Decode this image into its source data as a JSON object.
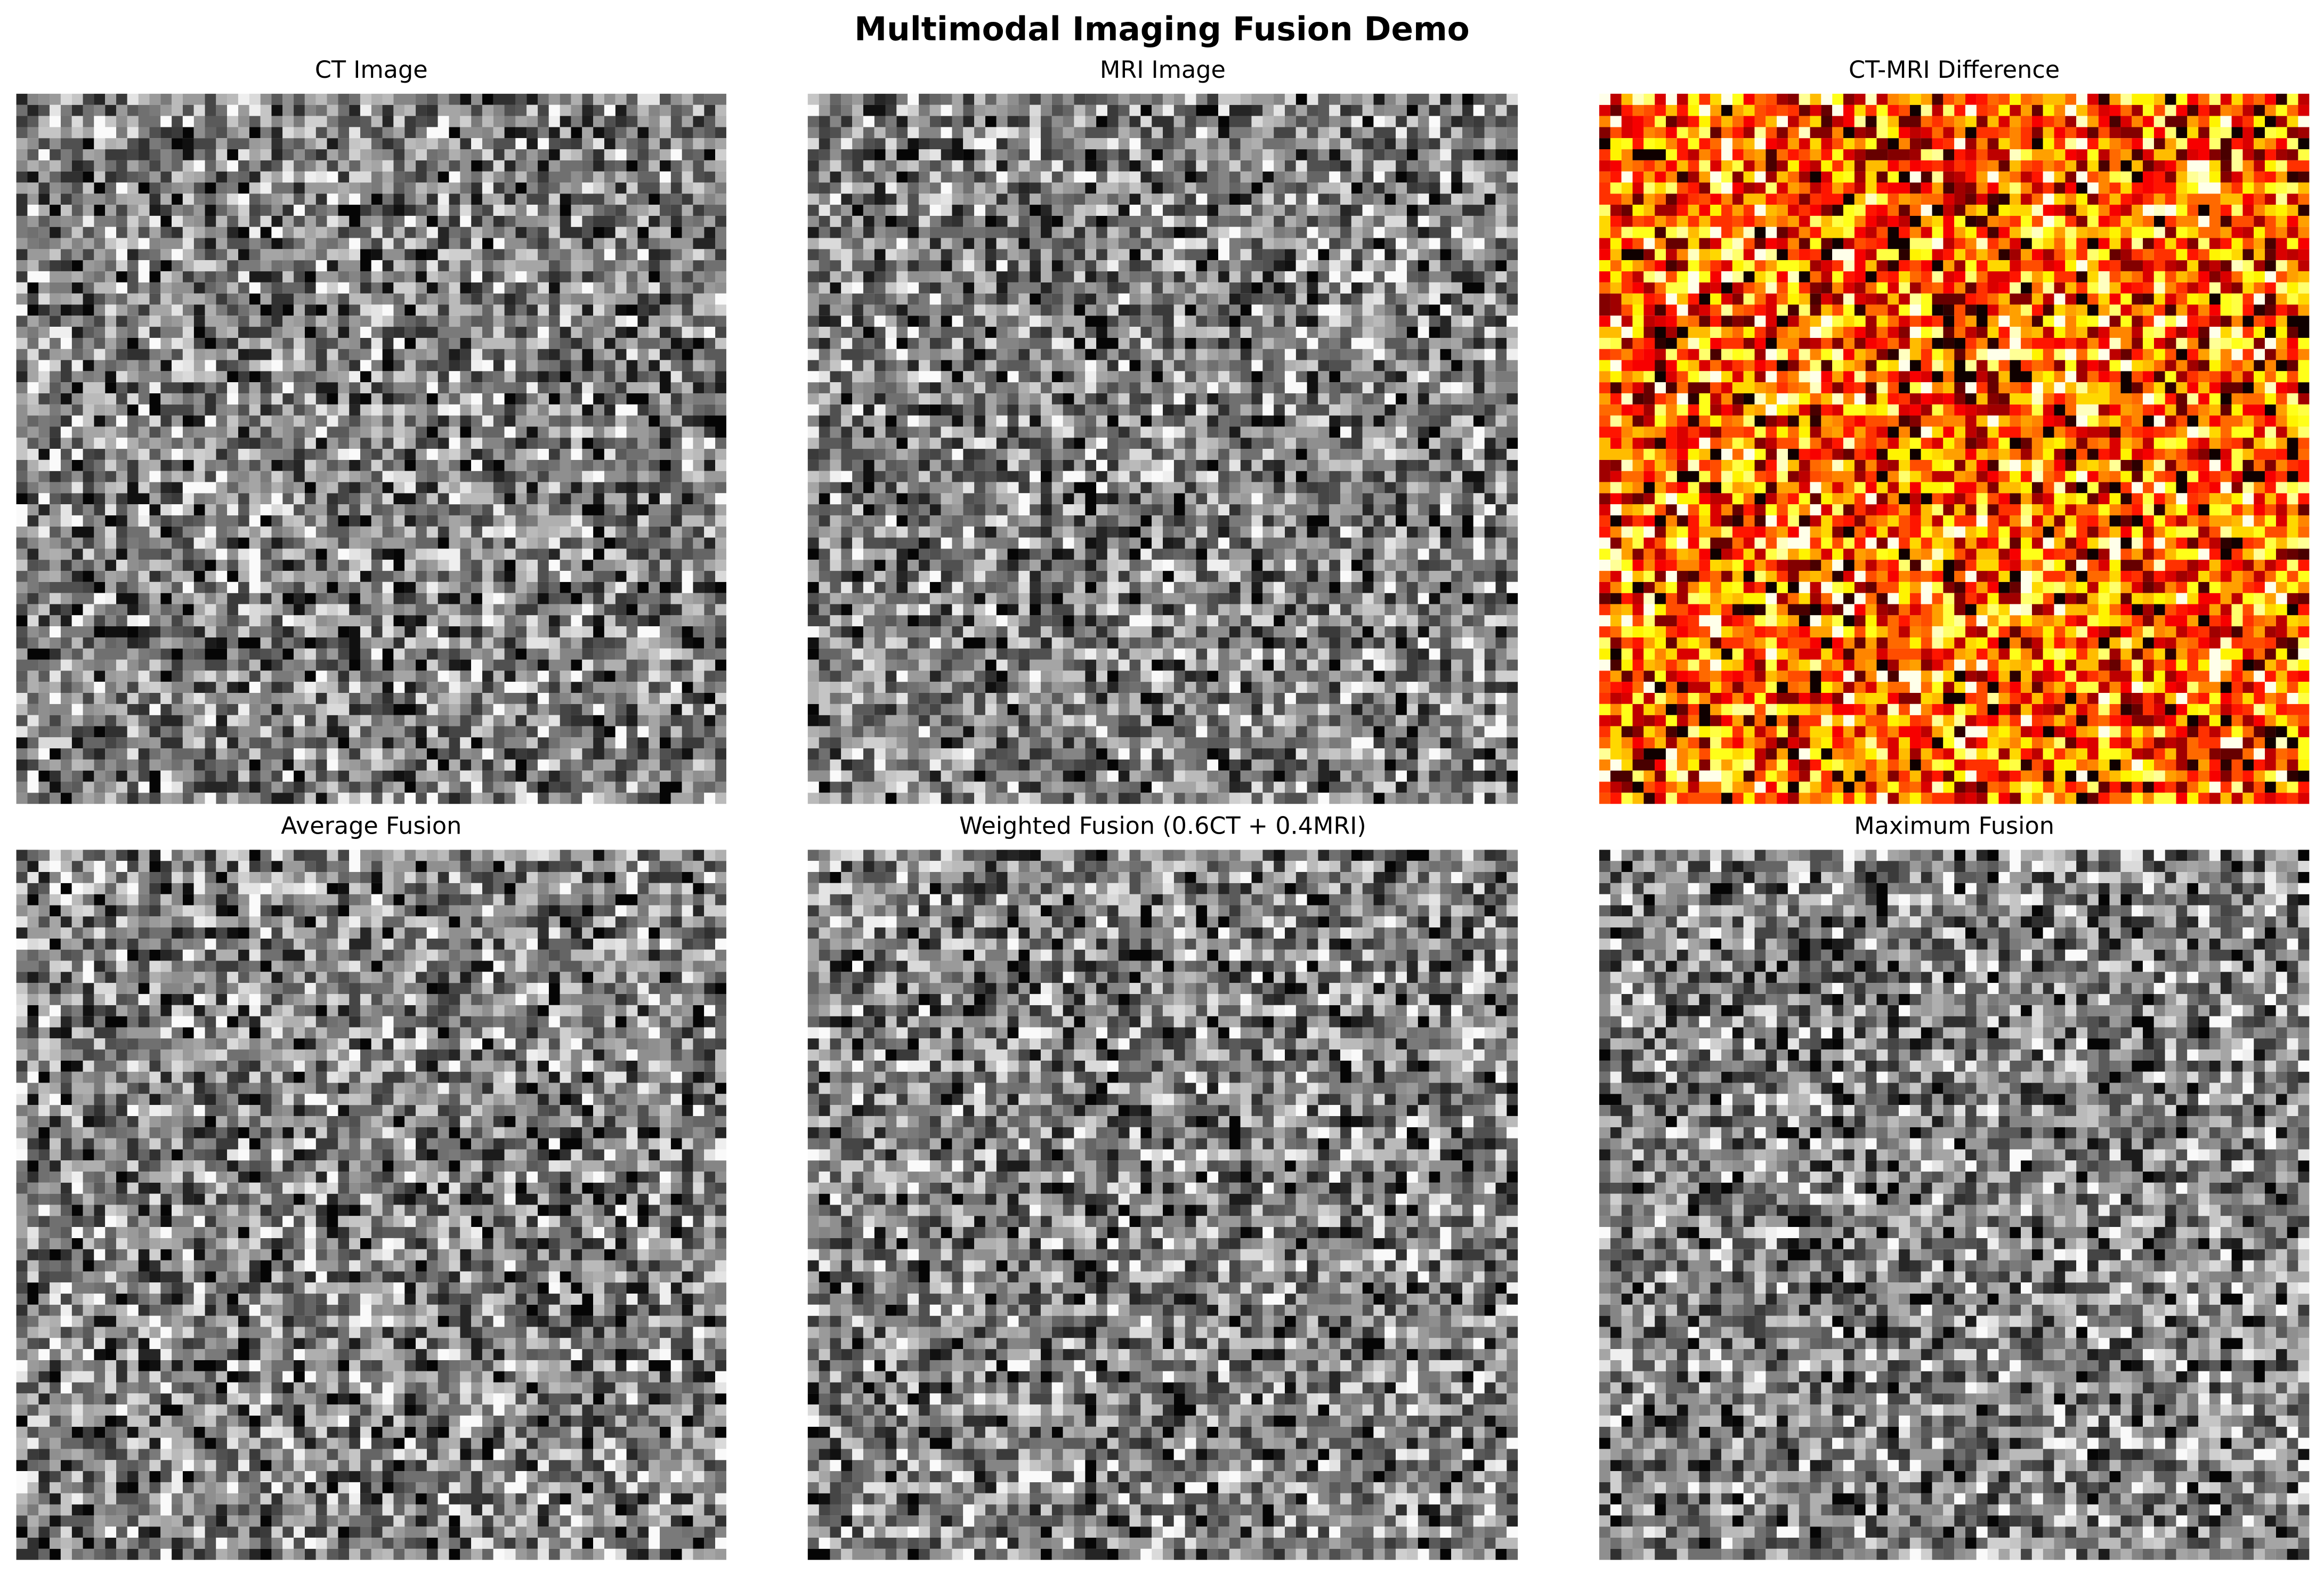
{
  "title": "Multimodal Imaging Fusion Demo",
  "panels": [
    {
      "title": "CT Image",
      "cmap": "gray"
    },
    {
      "title": "MRI Image",
      "cmap": "gray"
    },
    {
      "title": "CT-MRI Difference",
      "cmap": "hot"
    },
    {
      "title": "Average Fusion",
      "cmap": "gray"
    },
    {
      "title": "Weighted Fusion (0.6CT + 0.4MRI)",
      "cmap": "gray"
    },
    {
      "title": "Maximum Fusion",
      "cmap": "gray"
    }
  ]
}
